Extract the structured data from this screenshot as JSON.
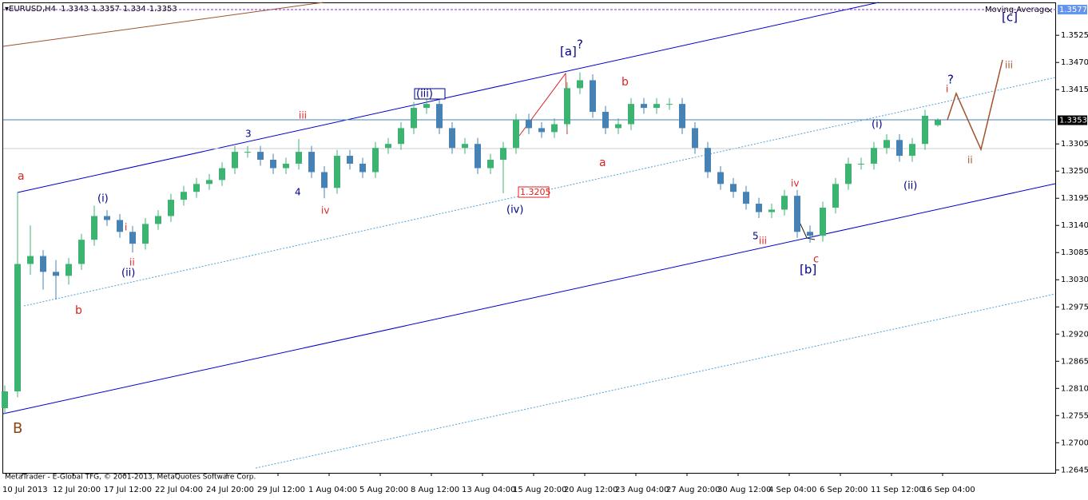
{
  "chart_data": {
    "type": "candlestick",
    "symbol": "EURUSD,H4",
    "indicator": "Moving Average",
    "footer": "MetaTrader - E-Global TFG, © 2001-2013, MetaQuotes Software Corp.",
    "up_color": "#3cb371",
    "down_color": "#4682b4",
    "ylim": [
      1.2639,
      1.359
    ],
    "yticks": [
      1.3525,
      {
        "value": 1.347,
        "label": "1.3470"
      },
      1.3415,
      1.3305,
      {
        "value": 1.325,
        "label": "1.3250"
      },
      1.3195,
      {
        "value": 1.314,
        "label": "1.3140"
      },
      1.3085,
      {
        "value": 1.303,
        "label": "1.3030"
      },
      1.2975,
      {
        "value": 1.292,
        "label": "1.2920"
      },
      1.2865,
      {
        "value": 1.281,
        "label": "1.2810"
      },
      1.2755,
      {
        "value": 1.27,
        "label": "1.2700"
      },
      1.2645
    ],
    "level": 1.3577,
    "x_tick_labels": [
      "10 Jul 2013",
      "12 Jul 20:00",
      "17 Jul 12:00",
      "22 Jul 04:00",
      "24 Jul 20:00",
      "29 Jul 12:00",
      "1 Aug 04:00",
      "5 Aug 20:00",
      "8 Aug 12:00",
      "13 Aug 04:00",
      "15 Aug 20:00",
      "20 Aug 12:00",
      "23 Aug 04:00",
      "27 Aug 20:00",
      "30 Aug 12:00",
      "4 Sep 04:00",
      "6 Sep 20:00",
      "11 Sep 12:00",
      "16 Sep 04:00"
    ],
    "open": [
      1.277,
      1.2804,
      1.3062,
      1.3078,
      1.3046,
      1.3038,
      1.3062,
      1.3111,
      1.3159,
      1.3151,
      1.3127,
      1.3103,
      1.3143,
      1.3159,
      1.3192,
      1.3208,
      1.3224,
      1.3232,
      1.3256,
      1.3289,
      1.3289,
      1.3273,
      1.3256,
      1.3265,
      1.3289,
      1.3248,
      1.3216,
      1.3281,
      1.3265,
      1.3248,
      1.3297,
      1.3305,
      1.3337,
      1.3378,
      1.3386,
      1.3337,
      1.3297,
      1.3305,
      1.3256,
      1.3273,
      1.3297,
      1.3354,
      1.3337,
      1.3329,
      1.3345,
      1.3418,
      1.3434,
      1.337,
      1.3337,
      1.3345,
      1.3386,
      1.3378,
      1.3386,
      1.3386,
      1.3337,
      1.3297,
      1.3248,
      1.3224,
      1.3208,
      1.3184,
      1.3167,
      1.3172,
      1.32,
      1.3127,
      1.3119,
      1.3176,
      1.3224,
      1.3265,
      1.3265,
      1.3297,
      1.3313,
      1.3281,
      1.3305,
      1.3343
    ],
    "high": [
      1.2816,
      1.3208,
      1.314,
      1.309,
      1.307,
      1.3074,
      1.3123,
      1.318,
      1.3171,
      1.3163,
      1.3139,
      1.3155,
      1.3171,
      1.3204,
      1.322,
      1.3236,
      1.3244,
      1.3268,
      1.3301,
      1.3301,
      1.3301,
      1.3285,
      1.3277,
      1.3315,
      1.3301,
      1.326,
      1.3293,
      1.3293,
      1.3277,
      1.3309,
      1.3317,
      1.3349,
      1.339,
      1.3398,
      1.3398,
      1.3349,
      1.3317,
      1.3317,
      1.3285,
      1.3309,
      1.3366,
      1.3366,
      1.3349,
      1.3357,
      1.343,
      1.345,
      1.3446,
      1.3382,
      1.3357,
      1.3398,
      1.3398,
      1.3398,
      1.3398,
      1.3398,
      1.3349,
      1.3309,
      1.326,
      1.3236,
      1.322,
      1.3196,
      1.3184,
      1.3212,
      1.3212,
      1.314,
      1.3188,
      1.3236,
      1.3277,
      1.3277,
      1.3309,
      1.3325,
      1.3325,
      1.3317,
      1.3374,
      1.3357
    ],
    "low": [
      1.2758,
      1.2792,
      1.304,
      1.301,
      1.299,
      1.302,
      1.305,
      1.3099,
      1.3139,
      1.3115,
      1.3085,
      1.3091,
      1.3131,
      1.3147,
      1.318,
      1.3196,
      1.3212,
      1.322,
      1.3244,
      1.3277,
      1.3261,
      1.3244,
      1.3244,
      1.3253,
      1.3236,
      1.3195,
      1.3204,
      1.3253,
      1.3236,
      1.3236,
      1.3285,
      1.3293,
      1.3325,
      1.3366,
      1.3325,
      1.3285,
      1.3285,
      1.3244,
      1.3244,
      1.3205,
      1.3285,
      1.3325,
      1.3317,
      1.3317,
      1.3333,
      1.3406,
      1.3358,
      1.3325,
      1.3325,
      1.3333,
      1.3366,
      1.3366,
      1.3374,
      1.3325,
      1.3285,
      1.3236,
      1.3212,
      1.3196,
      1.3172,
      1.3155,
      1.3155,
      1.316,
      1.3115,
      1.3105,
      1.3107,
      1.3164,
      1.3212,
      1.3253,
      1.3253,
      1.3285,
      1.3269,
      1.3269,
      1.3293,
      1.334
    ],
    "close": [
      1.2804,
      1.3062,
      1.3078,
      1.3046,
      1.3038,
      1.3062,
      1.3111,
      1.3159,
      1.3151,
      1.3127,
      1.3103,
      1.3143,
      1.3159,
      1.3192,
      1.3208,
      1.3224,
      1.3232,
      1.3256,
      1.3289,
      1.3289,
      1.3273,
      1.3256,
      1.3265,
      1.3289,
      1.3248,
      1.3216,
      1.3281,
      1.3265,
      1.3248,
      1.3297,
      1.3305,
      1.3337,
      1.3378,
      1.3386,
      1.3337,
      1.3297,
      1.3305,
      1.3256,
      1.3273,
      1.3297,
      1.3354,
      1.3337,
      1.3329,
      1.3345,
      1.3418,
      1.3434,
      1.337,
      1.3337,
      1.3345,
      1.3386,
      1.3378,
      1.3386,
      1.3386,
      1.3337,
      1.3297,
      1.3248,
      1.3224,
      1.3208,
      1.3184,
      1.3167,
      1.3172,
      1.32,
      1.3127,
      1.3119,
      1.3176,
      1.3224,
      1.3265,
      1.3265,
      1.3297,
      1.3313,
      1.3281,
      1.3305,
      1.3362,
      1.3353
    ],
    "annotations": [
      {
        "text": "B",
        "color": "#8b4513"
      },
      {
        "text": "a",
        "color": "#d22"
      },
      {
        "text": "b",
        "color": "#d22"
      },
      {
        "text": "(i)",
        "color": "#00008b"
      },
      {
        "text": "(ii)",
        "color": "#00008b"
      },
      {
        "text": "i",
        "color": "#d22"
      },
      {
        "text": "ii",
        "color": "#d22"
      },
      {
        "text": "3",
        "color": "#00008b"
      },
      {
        "text": "4",
        "color": "#00008b"
      },
      {
        "text": "iii",
        "color": "#d22"
      },
      {
        "text": "iv",
        "color": "#d22"
      },
      {
        "text": "(iii)",
        "color": "#00008b"
      },
      {
        "text": "(iv)",
        "color": "#00008b"
      },
      {
        "text": "1.3205",
        "color": "#d22"
      },
      {
        "text": "[a]",
        "color": "#00008b"
      },
      {
        "text": "?",
        "color": "#00008b"
      },
      {
        "text": "b",
        "color": "#d22"
      },
      {
        "text": "a",
        "color": "#d22"
      },
      {
        "text": "5",
        "color": "#00008b"
      },
      {
        "text": "iii",
        "color": "#d22"
      },
      {
        "text": "iv",
        "color": "#d22"
      },
      {
        "text": "[b]",
        "color": "#00008b"
      },
      {
        "text": "c",
        "color": "#d22"
      },
      {
        "text": "(i)",
        "color": "#00008b"
      },
      {
        "text": "(ii)",
        "color": "#00008b"
      },
      {
        "text": "?",
        "color": "#00008b"
      },
      {
        "text": "i",
        "color": "#d22"
      },
      {
        "text": "ii",
        "color": "#a0522d"
      },
      {
        "text": "iii",
        "color": "#a0522d"
      },
      {
        "text": "[c]",
        "color": "#00008b"
      }
    ]
  }
}
